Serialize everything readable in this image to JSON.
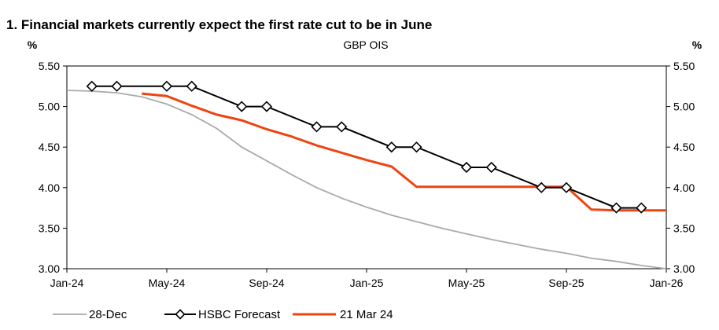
{
  "title": "1. Financial markets currently expect the first rate cut to be in June",
  "chart_data": {
    "type": "line",
    "subtitle": "GBP OIS",
    "ylabel_left": "%",
    "ylabel_right": "%",
    "x_axis_type": "date",
    "xlim": [
      "2024-01",
      "2026-01"
    ],
    "ylim": [
      3.0,
      5.5
    ],
    "x_ticks": [
      "2024-01",
      "2024-05",
      "2024-09",
      "2025-01",
      "2025-05",
      "2025-09",
      "2026-01"
    ],
    "x_tick_labels": [
      "Jan-24",
      "May-24",
      "Sep-24",
      "Jan-25",
      "May-25",
      "Sep-25",
      "Jan-26"
    ],
    "y_ticks": [
      3.0,
      3.5,
      4.0,
      4.5,
      5.0,
      5.5
    ],
    "y_tick_labels": [
      "3.00",
      "3.50",
      "4.00",
      "4.50",
      "5.00",
      "5.50"
    ],
    "grid": false,
    "legend_position": "bottom",
    "series": [
      {
        "name": "28-Dec",
        "color": "#aaaaaa",
        "marker": "none",
        "x": [
          "2024-01",
          "2024-02",
          "2024-03",
          "2024-04",
          "2024-05",
          "2024-06",
          "2024-07",
          "2024-08",
          "2024-09",
          "2024-10",
          "2024-11",
          "2024-12",
          "2025-01",
          "2025-02",
          "2025-03",
          "2025-04",
          "2025-05",
          "2025-06",
          "2025-07",
          "2025-08",
          "2025-09",
          "2025-10",
          "2025-11",
          "2025-12",
          "2026-01"
        ],
        "y": [
          5.2,
          5.19,
          5.17,
          5.12,
          5.03,
          4.9,
          4.73,
          4.5,
          4.33,
          4.16,
          4.0,
          3.87,
          3.76,
          3.66,
          3.58,
          3.5,
          3.43,
          3.36,
          3.3,
          3.24,
          3.19,
          3.13,
          3.09,
          3.04,
          3.0
        ]
      },
      {
        "name": "HSBC Forecast",
        "color": "#000000",
        "marker": "diamond",
        "x": [
          "2024-02",
          "2024-03",
          "2024-05",
          "2024-06",
          "2024-08",
          "2024-09",
          "2024-11",
          "2024-12",
          "2025-02",
          "2025-03",
          "2025-05",
          "2025-06",
          "2025-08",
          "2025-09",
          "2025-11",
          "2025-12"
        ],
        "y": [
          5.25,
          5.25,
          5.25,
          5.25,
          5.0,
          5.0,
          4.75,
          4.75,
          4.5,
          4.5,
          4.25,
          4.25,
          4.0,
          4.0,
          3.75,
          3.75
        ]
      },
      {
        "name": "21 Mar 24",
        "color": "#ee4411",
        "marker": "none",
        "x": [
          "2024-04",
          "2024-05",
          "2024-06",
          "2024-07",
          "2024-08",
          "2024-09",
          "2024-10",
          "2024-11",
          "2024-12",
          "2025-01",
          "2025-02",
          "2025-03",
          "2025-04",
          "2025-05",
          "2025-06",
          "2025-07",
          "2025-08",
          "2025-09",
          "2025-10",
          "2025-11",
          "2025-12",
          "2026-01"
        ],
        "y": [
          5.16,
          5.13,
          5.01,
          4.9,
          4.83,
          4.72,
          4.63,
          4.52,
          4.43,
          4.34,
          4.26,
          4.01,
          4.01,
          4.01,
          4.01,
          4.01,
          4.01,
          4.01,
          3.73,
          3.72,
          3.72,
          3.72
        ]
      }
    ]
  }
}
